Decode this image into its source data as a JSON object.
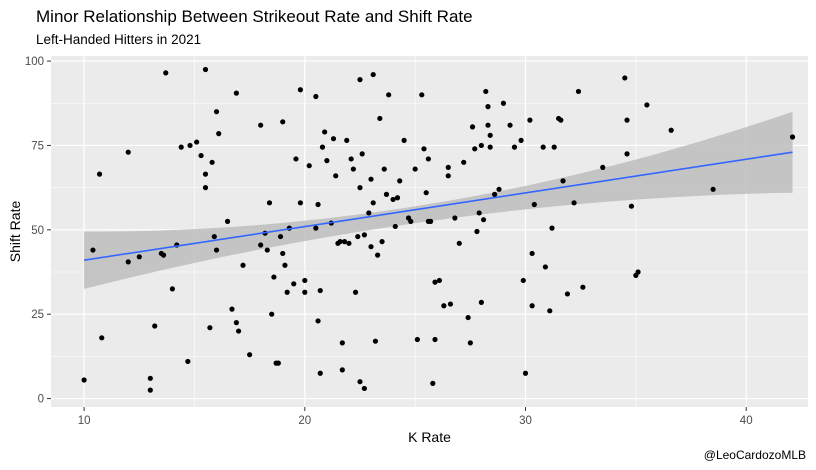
{
  "chart_data": {
    "type": "scatter",
    "title": "Minor Relationship Between Strikeout Rate and Shift Rate",
    "subtitle": "Left-Handed Hitters in 2021",
    "caption": "@LeoCardozoMLB",
    "xlabel": "K Rate",
    "ylabel": "Shift Rate",
    "xlim": [
      8.5,
      42.8
    ],
    "ylim": [
      -2.5,
      101.5
    ],
    "x_ticks": [
      10,
      20,
      30,
      40
    ],
    "y_ticks": [
      0,
      25,
      50,
      75,
      100
    ],
    "grid": true,
    "trend": {
      "method": "linear",
      "x_range": [
        10,
        42.1
      ],
      "intercept_at_xmin": 41,
      "value_at_xmax": 73,
      "band_at_xmin": [
        32.5,
        49.5
      ],
      "band_at_xmax": [
        61,
        85
      ],
      "band_mid_x": 23.5,
      "band_mid": [
        50.5,
        55.5
      ],
      "color": "#3366FF",
      "band_color": "#bdbdbd"
    },
    "points": [
      [
        10,
        5.5
      ],
      [
        10.4,
        44
      ],
      [
        10.7,
        66.5
      ],
      [
        10.8,
        18
      ],
      [
        12,
        40.5
      ],
      [
        12,
        73
      ],
      [
        12.5,
        42
      ],
      [
        13,
        6
      ],
      [
        13,
        2.5
      ],
      [
        13.2,
        21.5
      ],
      [
        13.5,
        43
      ],
      [
        13.6,
        42.5
      ],
      [
        13.7,
        96.5
      ],
      [
        14,
        32.5
      ],
      [
        14.2,
        45.5
      ],
      [
        14.4,
        74.5
      ],
      [
        14.7,
        11
      ],
      [
        14.8,
        75
      ],
      [
        15.1,
        76
      ],
      [
        15.3,
        72
      ],
      [
        15.5,
        97.5
      ],
      [
        15.5,
        62.5
      ],
      [
        15.5,
        66.5
      ],
      [
        15.7,
        21
      ],
      [
        15.8,
        70
      ],
      [
        15.9,
        48
      ],
      [
        16,
        85
      ],
      [
        16,
        44
      ],
      [
        16.1,
        78.5
      ],
      [
        16.5,
        52.5
      ],
      [
        16.7,
        26.5
      ],
      [
        16.9,
        22.5
      ],
      [
        16.9,
        90.5
      ],
      [
        17,
        20
      ],
      [
        17.2,
        39.5
      ],
      [
        17.5,
        13
      ],
      [
        18,
        81
      ],
      [
        18,
        45.5
      ],
      [
        18.2,
        49
      ],
      [
        18.3,
        44
      ],
      [
        18.4,
        58
      ],
      [
        18.5,
        25
      ],
      [
        18.6,
        36
      ],
      [
        18.7,
        10.5
      ],
      [
        18.8,
        10.5
      ],
      [
        18.9,
        48
      ],
      [
        19,
        82
      ],
      [
        19,
        43
      ],
      [
        19.1,
        39.5
      ],
      [
        19.2,
        31.5
      ],
      [
        19.3,
        50.5
      ],
      [
        19.5,
        34
      ],
      [
        19.6,
        71
      ],
      [
        19.8,
        58
      ],
      [
        19.8,
        91.5
      ],
      [
        20,
        31.5
      ],
      [
        20,
        35
      ],
      [
        20.2,
        69
      ],
      [
        20.5,
        89.5
      ],
      [
        20.5,
        50.5
      ],
      [
        20.6,
        57.5
      ],
      [
        20.6,
        23
      ],
      [
        20.7,
        32
      ],
      [
        20.7,
        7.5
      ],
      [
        20.8,
        74.5
      ],
      [
        20.9,
        79
      ],
      [
        21,
        70.5
      ],
      [
        21.2,
        52
      ],
      [
        21.3,
        77
      ],
      [
        21.4,
        66
      ],
      [
        21.5,
        46
      ],
      [
        21.6,
        46.5
      ],
      [
        21.7,
        16.5
      ],
      [
        21.7,
        8.5
      ],
      [
        21.8,
        46.5
      ],
      [
        21.9,
        76.5
      ],
      [
        22,
        46
      ],
      [
        22.1,
        71
      ],
      [
        22.2,
        68
      ],
      [
        22.3,
        31.5
      ],
      [
        22.4,
        48
      ],
      [
        22.5,
        62.5
      ],
      [
        22.5,
        94.5
      ],
      [
        22.5,
        5
      ],
      [
        22.6,
        72.5
      ],
      [
        22.7,
        48.5
      ],
      [
        22.7,
        3
      ],
      [
        22.9,
        55
      ],
      [
        23,
        65
      ],
      [
        23,
        45
      ],
      [
        23.1,
        58
      ],
      [
        23.1,
        96
      ],
      [
        23.2,
        17
      ],
      [
        23.3,
        42.5
      ],
      [
        23.4,
        83
      ],
      [
        23.5,
        46.5
      ],
      [
        23.6,
        68
      ],
      [
        23.7,
        60.5
      ],
      [
        23.8,
        90
      ],
      [
        24,
        59
      ],
      [
        24.1,
        51
      ],
      [
        24.2,
        59.5
      ],
      [
        24.3,
        64.5
      ],
      [
        24.5,
        76.5
      ],
      [
        24.7,
        53.5
      ],
      [
        24.8,
        52.5
      ],
      [
        25,
        68
      ],
      [
        25.1,
        17.5
      ],
      [
        25.3,
        90
      ],
      [
        25.4,
        74
      ],
      [
        25.5,
        61
      ],
      [
        25.6,
        71
      ],
      [
        25.6,
        52.5
      ],
      [
        25.7,
        52.5
      ],
      [
        25.8,
        4.5
      ],
      [
        25.9,
        34.5
      ],
      [
        25.9,
        17.5
      ],
      [
        26.1,
        35
      ],
      [
        26.3,
        27.5
      ],
      [
        26.5,
        68.5
      ],
      [
        26.5,
        66
      ],
      [
        26.6,
        28
      ],
      [
        26.8,
        53.5
      ],
      [
        27,
        46
      ],
      [
        27.2,
        70
      ],
      [
        27.4,
        24
      ],
      [
        27.5,
        16.5
      ],
      [
        27.6,
        80.5
      ],
      [
        27.7,
        74
      ],
      [
        27.8,
        49.5
      ],
      [
        27.9,
        55
      ],
      [
        28,
        75
      ],
      [
        28,
        28.5
      ],
      [
        28.1,
        53
      ],
      [
        28.2,
        91
      ],
      [
        28.3,
        81
      ],
      [
        28.3,
        86.5
      ],
      [
        28.4,
        78
      ],
      [
        28.4,
        74.5
      ],
      [
        28.6,
        60.5
      ],
      [
        28.8,
        62
      ],
      [
        29,
        87.5
      ],
      [
        29.3,
        81
      ],
      [
        29.5,
        74.5
      ],
      [
        29.8,
        76.5
      ],
      [
        29.9,
        35
      ],
      [
        30,
        7.5
      ],
      [
        30.2,
        82.5
      ],
      [
        30.3,
        27.5
      ],
      [
        30.3,
        43
      ],
      [
        30.4,
        57.5
      ],
      [
        30.8,
        74.5
      ],
      [
        30.9,
        39
      ],
      [
        31.3,
        74.5
      ],
      [
        31.1,
        26
      ],
      [
        31.2,
        50.5
      ],
      [
        31.5,
        83
      ],
      [
        31.6,
        82.5
      ],
      [
        31.7,
        64.5
      ],
      [
        31.9,
        31
      ],
      [
        32.2,
        58
      ],
      [
        32.4,
        91
      ],
      [
        32.6,
        33
      ],
      [
        33.5,
        68.5
      ],
      [
        34.5,
        95
      ],
      [
        34.6,
        82.5
      ],
      [
        34.6,
        72.5
      ],
      [
        34.8,
        57
      ],
      [
        35,
        36.5
      ],
      [
        35.1,
        37.5
      ],
      [
        35.5,
        87
      ],
      [
        36.6,
        79.5
      ],
      [
        38.5,
        62
      ],
      [
        42.1,
        77.5
      ]
    ]
  }
}
